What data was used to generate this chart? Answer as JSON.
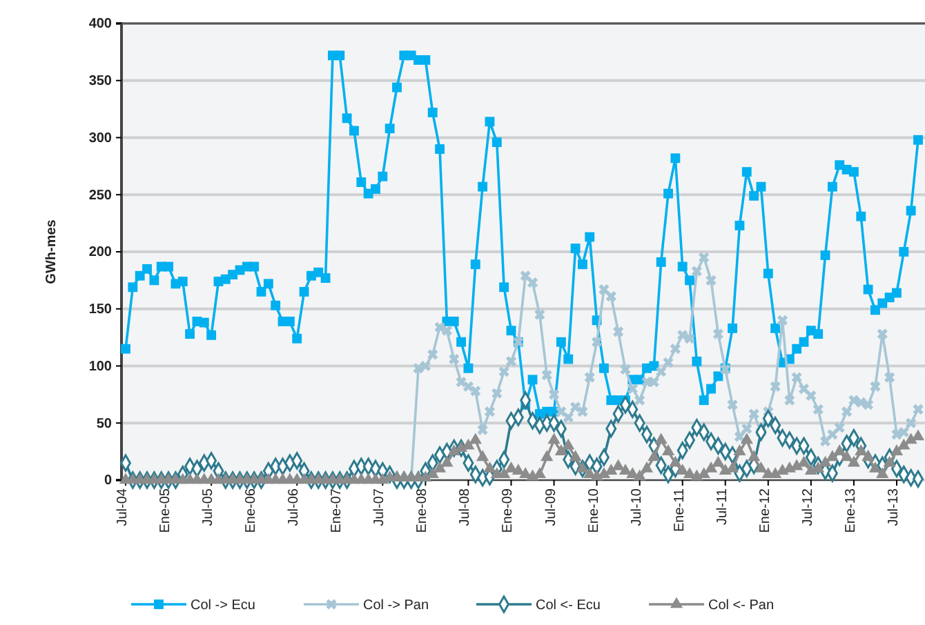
{
  "chart_data": {
    "type": "line",
    "ylabel": "GWh-mes",
    "categories": [
      "Jul-04",
      null,
      null,
      null,
      null,
      null,
      "Ene-05",
      null,
      null,
      null,
      null,
      null,
      "Jul-05",
      null,
      null,
      null,
      null,
      null,
      "Ene-06",
      null,
      null,
      null,
      null,
      null,
      "Jul-06",
      null,
      null,
      null,
      null,
      null,
      "Ene-07",
      null,
      null,
      null,
      null,
      null,
      "Jul-07",
      null,
      null,
      null,
      null,
      null,
      "Ene-08",
      null,
      null,
      null,
      null,
      null,
      "Jul-08",
      null,
      null,
      null,
      null,
      null,
      "Ene-09",
      null,
      null,
      null,
      null,
      null,
      "Jul-09",
      null,
      null,
      null,
      null,
      null,
      "Ene-10",
      null,
      null,
      null,
      null,
      null,
      "Jul-10",
      null,
      null,
      null,
      null,
      null,
      "Ene-11",
      null,
      null,
      null,
      null,
      null,
      "Jul-11",
      null,
      null,
      null,
      null,
      null,
      "Ene-12",
      null,
      null,
      null,
      null,
      null,
      "Jul-12",
      null,
      null,
      null,
      null,
      null,
      "Ene-13",
      null,
      null,
      null,
      null,
      null,
      "Jul-13",
      null,
      null,
      null
    ],
    "ylim": [
      0,
      400
    ],
    "yticks": [
      0,
      50,
      100,
      150,
      200,
      250,
      300,
      350,
      400
    ],
    "grid": "y",
    "legend": "bottom",
    "series": [
      {
        "name": "Col -> Ecu",
        "color": "#00b0f0",
        "marker": "square",
        "values": [
          115,
          169,
          179,
          185,
          175,
          187,
          187,
          172,
          174,
          128,
          139,
          138,
          127,
          174,
          176,
          180,
          184,
          187,
          187,
          165,
          172,
          153,
          139,
          139,
          124,
          165,
          179,
          182,
          177,
          372,
          372,
          317,
          306,
          261,
          251,
          255,
          266,
          308,
          344,
          372,
          372,
          368,
          368,
          322,
          290,
          139,
          139,
          121,
          98,
          189,
          257,
          314,
          296,
          169,
          131,
          121,
          66,
          88,
          58,
          60,
          60,
          121,
          106,
          203,
          189,
          213,
          140,
          98,
          70,
          70,
          70,
          88,
          88,
          98,
          100,
          191,
          251,
          282,
          187,
          175,
          104,
          70,
          80,
          91,
          98,
          133,
          223,
          270,
          249,
          257,
          181,
          133,
          103,
          106,
          115,
          121,
          131,
          128,
          197,
          257,
          276,
          272,
          270,
          231,
          167,
          149,
          155,
          160,
          164,
          200,
          236,
          298
        ]
      },
      {
        "name": "Col -> Pan",
        "color": "#a6c6d6",
        "marker": "cross",
        "values": [
          null,
          null,
          null,
          null,
          null,
          null,
          null,
          null,
          null,
          null,
          null,
          null,
          null,
          null,
          null,
          null,
          null,
          null,
          null,
          null,
          null,
          null,
          null,
          null,
          null,
          null,
          null,
          null,
          null,
          null,
          null,
          null,
          null,
          null,
          null,
          null,
          null,
          null,
          null,
          null,
          0,
          98,
          100,
          110,
          134,
          131,
          106,
          86,
          82,
          78,
          44,
          60,
          76,
          95,
          104,
          121,
          179,
          173,
          145,
          92,
          75,
          60,
          55,
          64,
          60,
          90,
          121,
          167,
          161,
          130,
          97,
          80,
          70,
          86,
          86,
          95,
          103,
          115,
          127,
          124,
          183,
          195,
          175,
          128,
          97,
          66,
          38,
          45,
          58,
          42,
          60,
          82,
          140,
          70,
          90,
          80,
          74,
          62,
          34,
          40,
          46,
          60,
          70,
          68,
          66,
          82,
          128,
          90,
          40,
          42,
          50,
          62
        ]
      },
      {
        "name": "Col <- Ecu",
        "color": "#2e7a8e",
        "marker": "diamond",
        "values": [
          15,
          0,
          0,
          0,
          0,
          0,
          0,
          0,
          5,
          12,
          10,
          15,
          17,
          8,
          0,
          0,
          0,
          0,
          0,
          0,
          8,
          12,
          12,
          15,
          17,
          8,
          0,
          0,
          0,
          0,
          0,
          0,
          10,
          12,
          12,
          10,
          8,
          5,
          0,
          0,
          0,
          0,
          8,
          15,
          22,
          25,
          28,
          28,
          15,
          5,
          2,
          3,
          10,
          18,
          52,
          55,
          70,
          52,
          48,
          50,
          50,
          45,
          18,
          12,
          10,
          15,
          12,
          20,
          45,
          58,
          66,
          62,
          50,
          40,
          30,
          13,
          5,
          10,
          26,
          35,
          46,
          42,
          34,
          30,
          25,
          22,
          6,
          10,
          13,
          42,
          54,
          48,
          37,
          35,
          30,
          30,
          20,
          13,
          8,
          6,
          20,
          32,
          37,
          30,
          18,
          15,
          13,
          20,
          10,
          5,
          2,
          1
        ]
      },
      {
        "name": "Col <- Pan",
        "color": "#8c8c8c",
        "marker": "triangle",
        "values": [
          0,
          0,
          0,
          0,
          0,
          0,
          0,
          0,
          0,
          0,
          0,
          0,
          0,
          0,
          0,
          0,
          0,
          0,
          0,
          0,
          0,
          0,
          0,
          0,
          0,
          0,
          0,
          0,
          0,
          0,
          0,
          0,
          0,
          0,
          0,
          0,
          0,
          2,
          2,
          2,
          2,
          2,
          2,
          5,
          10,
          15,
          25,
          28,
          30,
          35,
          20,
          10,
          5,
          5,
          10,
          8,
          5,
          3,
          5,
          20,
          35,
          25,
          30,
          20,
          10,
          5,
          3,
          5,
          8,
          12,
          8,
          5,
          3,
          10,
          20,
          35,
          25,
          15,
          8,
          5,
          3,
          5,
          10,
          15,
          8,
          10,
          25,
          35,
          20,
          10,
          5,
          5,
          8,
          10,
          12,
          15,
          8,
          10,
          15,
          20,
          25,
          20,
          15,
          25,
          20,
          10,
          5,
          15,
          25,
          30,
          35,
          38
        ]
      }
    ]
  }
}
